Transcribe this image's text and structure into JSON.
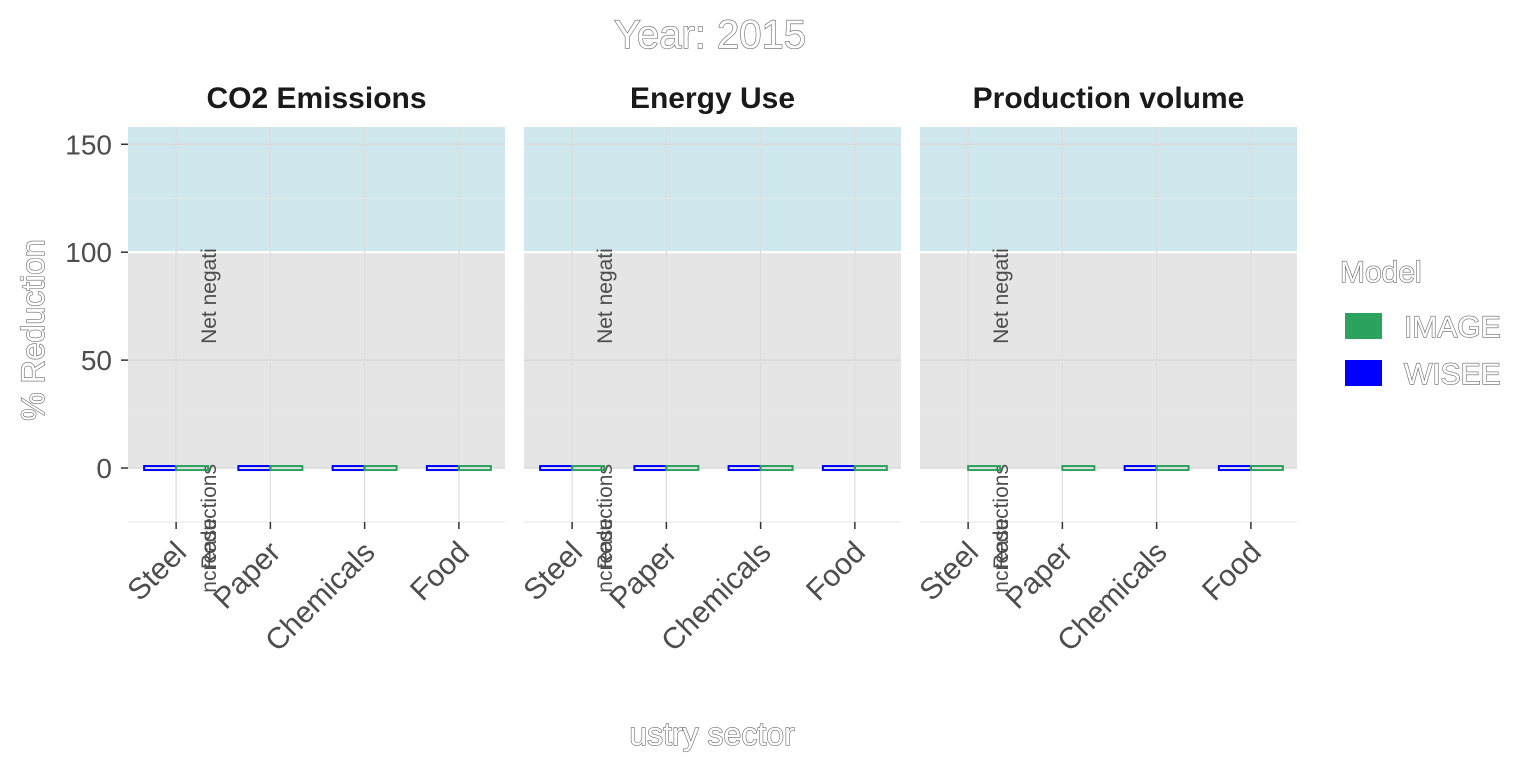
{
  "chart_data": {
    "type": "bar",
    "title": "Year: 2015",
    "xlabel": "ustry sector",
    "ylabel": "% Reduction",
    "ylim": [
      -25,
      158
    ],
    "yticks": [
      0,
      50,
      100,
      150
    ],
    "categories": [
      "Steel",
      "Paper",
      "Chemicals",
      "Food"
    ],
    "legend": {
      "title": "Model",
      "placement": "right",
      "entries": [
        {
          "name": "IMAGE",
          "color": "#2ca25f"
        },
        {
          "name": "WISEE",
          "color": "#0000ff"
        }
      ]
    },
    "region_labels": [
      {
        "label": "Net negati",
        "range": [
          100,
          158
        ],
        "color": "#cfe8ee"
      },
      {
        "label": "Reductions",
        "range": [
          0,
          100
        ],
        "color": "#e5e5e5"
      },
      {
        "label": "ncrease",
        "range": [
          -25,
          0
        ],
        "color": "#ffffff"
      }
    ],
    "panels": [
      {
        "name": "CO2 Emissions",
        "series": [
          {
            "name": "WISEE",
            "values": [
              0,
              0,
              0,
              0
            ]
          },
          {
            "name": "IMAGE",
            "values": [
              0,
              0,
              0,
              0
            ]
          }
        ]
      },
      {
        "name": "Energy Use",
        "series": [
          {
            "name": "WISEE",
            "values": [
              0,
              0,
              0,
              0
            ]
          },
          {
            "name": "IMAGE",
            "values": [
              0,
              0,
              0,
              0
            ]
          }
        ]
      },
      {
        "name": "Production volume",
        "series": [
          {
            "name": "WISEE",
            "values": [
              null,
              null,
              0,
              0
            ]
          },
          {
            "name": "IMAGE",
            "values": [
              0,
              0,
              0,
              0
            ]
          }
        ]
      }
    ]
  }
}
